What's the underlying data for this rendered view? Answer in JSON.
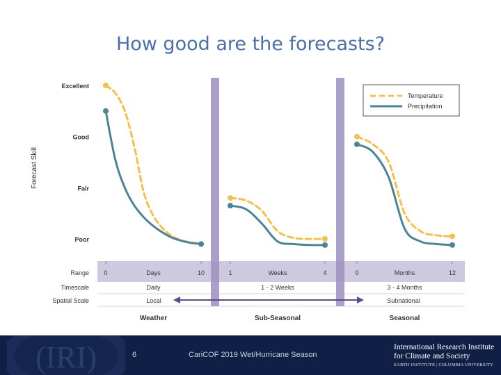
{
  "slide": {
    "title": "How good are the forecasts?",
    "number": "6",
    "footer_text": "CariCOF 2019 Wet/Hurricane Season",
    "logo_text": "(IRI)",
    "institution": {
      "line1": "International Research Institute",
      "line2": "for Climate and Society",
      "line3": "EARTH INSTITUTE | COLUMBIA UNIVERSITY"
    }
  },
  "chart_data": {
    "type": "line",
    "title": "",
    "ylabel": "Forecast Skill",
    "y_levels": [
      "Poor",
      "Fair",
      "Good",
      "Excellent"
    ],
    "ylim": [
      0.7,
      4.3
    ],
    "legend": {
      "position": "top-right",
      "entries": [
        "Temperature",
        "Precipitation"
      ]
    },
    "colors": {
      "temperature": "#f2c14e",
      "precipitation": "#4b8496",
      "divider": "#9c8fbf",
      "band": "#cfc9df",
      "arrow": "#5a4b8a",
      "text": "#333333",
      "line": "#d6d6d6"
    },
    "row_labels": {
      "range": "Range",
      "timescale": "Timescale",
      "spatial": "Spatial Scale"
    },
    "spatial_left": "Local",
    "spatial_right": "Subnational",
    "panels": [
      {
        "name": "Weather",
        "range_start": "0",
        "range_end": "10",
        "range_unit": "Days",
        "timescale": "Daily",
        "series": [
          {
            "name": "Temperature",
            "x": [
              0,
              1,
              2,
              3,
              4,
              5,
              6,
              7,
              8,
              9,
              10
            ],
            "y": [
              4.0,
              3.85,
              3.5,
              2.8,
              1.9,
              1.45,
              1.2,
              1.05,
              0.97,
              0.93,
              0.9
            ]
          },
          {
            "name": "Precipitation",
            "x": [
              0,
              1,
              2,
              3,
              4,
              5,
              6,
              7,
              8,
              9,
              10
            ],
            "y": [
              3.5,
              2.55,
              2.0,
              1.65,
              1.42,
              1.25,
              1.12,
              1.02,
              0.96,
              0.92,
              0.9
            ]
          }
        ]
      },
      {
        "name": "Sub-Seasonal",
        "range_start": "1",
        "range_end": "4",
        "range_unit": "Weeks",
        "timescale": "1 - 2 Weeks",
        "series": [
          {
            "name": "Temperature",
            "x": [
              1,
              1.5,
              2,
              2.5,
              3,
              3.5,
              4
            ],
            "y": [
              1.8,
              1.75,
              1.55,
              1.15,
              1.02,
              1.0,
              1.0
            ]
          },
          {
            "name": "Precipitation",
            "x": [
              1,
              1.5,
              2,
              2.5,
              3,
              3.5,
              4
            ],
            "y": [
              1.65,
              1.58,
              1.3,
              0.95,
              0.9,
              0.88,
              0.88
            ]
          }
        ]
      },
      {
        "name": "Seasonal",
        "range_start": "0",
        "range_end": "12",
        "range_unit": "Months",
        "timescale": "3 - 4 Months",
        "series": [
          {
            "name": "Temperature",
            "x": [
              0,
              2,
              4,
              6,
              8,
              10,
              12
            ],
            "y": [
              3.0,
              2.85,
              2.5,
              1.5,
              1.15,
              1.07,
              1.05
            ]
          },
          {
            "name": "Precipitation",
            "x": [
              0,
              2,
              4,
              6,
              8,
              10,
              12
            ],
            "y": [
              2.85,
              2.7,
              2.2,
              1.2,
              0.95,
              0.9,
              0.88
            ]
          }
        ]
      }
    ]
  }
}
